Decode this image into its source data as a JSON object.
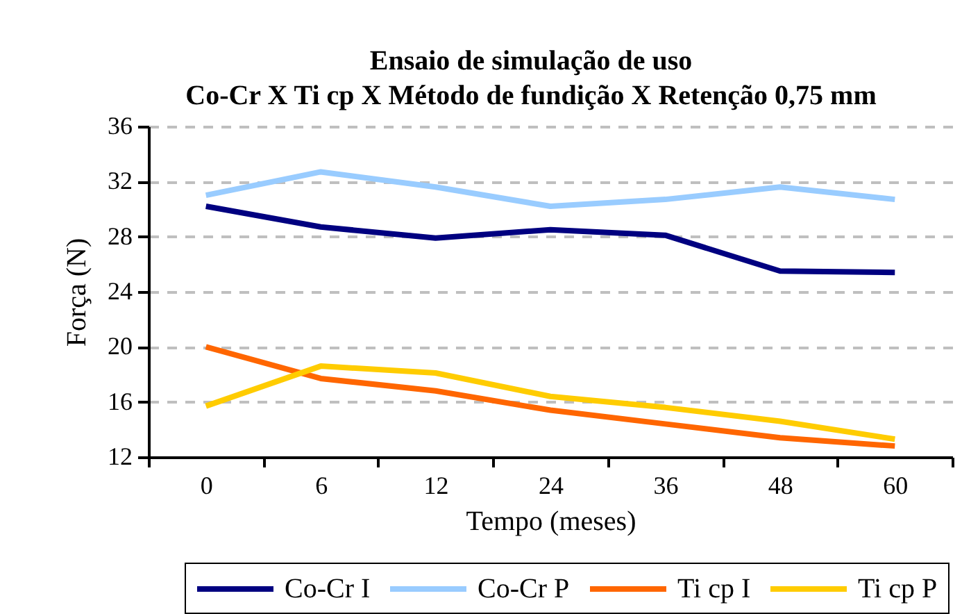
{
  "chart_data": {
    "type": "line",
    "title": "Ensaio de simulação de uso",
    "subtitle": "Co-Cr X Ti cp X Método de fundição X Retenção 0,75 mm",
    "xlabel": "Tempo (meses)",
    "ylabel": "Força (N)",
    "categories": [
      "0",
      "6",
      "12",
      "24",
      "36",
      "48",
      "60"
    ],
    "series": [
      {
        "name": "Co-Cr I",
        "color": "#000080",
        "values": [
          30.2,
          28.7,
          27.9,
          28.5,
          28.1,
          25.5,
          25.4
        ]
      },
      {
        "name": "Co-Cr P",
        "color": "#99ccff",
        "values": [
          31.0,
          32.7,
          31.6,
          30.2,
          30.7,
          31.6,
          30.7
        ]
      },
      {
        "name": "Ti cp I",
        "color": "#ff6600",
        "values": [
          20.0,
          17.7,
          16.8,
          15.4,
          14.4,
          13.4,
          12.8
        ]
      },
      {
        "name": "Ti cp P",
        "color": "#ffcc00",
        "values": [
          15.7,
          18.6,
          18.1,
          16.4,
          15.6,
          14.6,
          13.3
        ]
      }
    ],
    "ylim": [
      12,
      36
    ],
    "yticks": [
      12,
      16,
      20,
      24,
      28,
      32,
      36
    ],
    "grid": "y",
    "legend": "bottom",
    "line_style": "solid"
  }
}
